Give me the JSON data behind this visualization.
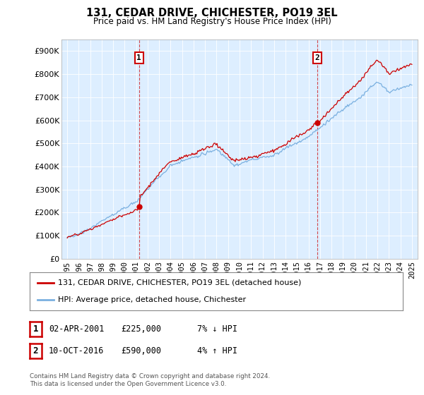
{
  "title": "131, CEDAR DRIVE, CHICHESTER, PO19 3EL",
  "subtitle": "Price paid vs. HM Land Registry's House Price Index (HPI)",
  "ylim": [
    0,
    950000
  ],
  "yticks": [
    0,
    100000,
    200000,
    300000,
    400000,
    500000,
    600000,
    700000,
    800000,
    900000
  ],
  "xticks": [
    1995,
    1996,
    1997,
    1998,
    1999,
    2000,
    2001,
    2002,
    2003,
    2004,
    2005,
    2006,
    2007,
    2008,
    2009,
    2010,
    2011,
    2012,
    2013,
    2014,
    2015,
    2016,
    2017,
    2018,
    2019,
    2020,
    2021,
    2022,
    2023,
    2024,
    2025
  ],
  "xlim": [
    1994.5,
    2025.5
  ],
  "hpi_color": "#7ab0e0",
  "price_color": "#cc0000",
  "plot_bg_color": "#ddeeff",
  "fig_bg_color": "#ffffff",
  "grid_color": "#ffffff",
  "sale1_x": 2001.25,
  "sale1_y": 225000,
  "sale2_x": 2016.75,
  "sale2_y": 590000,
  "legend_entries": [
    "131, CEDAR DRIVE, CHICHESTER, PO19 3EL (detached house)",
    "HPI: Average price, detached house, Chichester"
  ],
  "table_rows": [
    {
      "num": "1",
      "date": "02-APR-2001",
      "price": "£225,000",
      "hpi": "7% ↓ HPI"
    },
    {
      "num": "2",
      "date": "10-OCT-2016",
      "price": "£590,000",
      "hpi": "4% ↑ HPI"
    }
  ],
  "footer": "Contains HM Land Registry data © Crown copyright and database right 2024.\nThis data is licensed under the Open Government Licence v3.0."
}
